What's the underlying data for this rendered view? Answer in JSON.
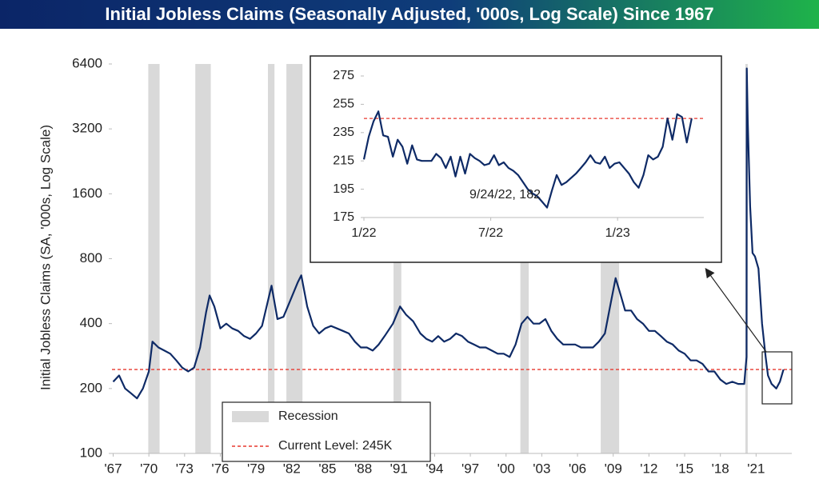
{
  "chart_data": [
    {
      "type": "line",
      "title": "Initial Jobless Claims (Seasonally Adjusted, '000s, Log Scale) Since 1967",
      "ylabel": "Initial Jobless Claims (SA, '000s, Log Scale)",
      "log_scale": true,
      "xlim": [
        1966.9,
        2024.0
      ],
      "ylim": [
        100,
        6400
      ],
      "yticks": [
        100,
        200,
        400,
        800,
        1600,
        3200,
        6400
      ],
      "xticks": [
        {
          "value": 1967,
          "label": "'67"
        },
        {
          "value": 1970,
          "label": "'70"
        },
        {
          "value": 1973,
          "label": "'73"
        },
        {
          "value": 1976,
          "label": "'76"
        },
        {
          "value": 1979,
          "label": "'79"
        },
        {
          "value": 1982,
          "label": "'82"
        },
        {
          "value": 1985,
          "label": "'85"
        },
        {
          "value": 1988,
          "label": "'88"
        },
        {
          "value": 1991,
          "label": "'91"
        },
        {
          "value": 1994,
          "label": "'94"
        },
        {
          "value": 1997,
          "label": "'97"
        },
        {
          "value": 2000,
          "label": "'00"
        },
        {
          "value": 2003,
          "label": "'03"
        },
        {
          "value": 2006,
          "label": "'06"
        },
        {
          "value": 2009,
          "label": "'09"
        },
        {
          "value": 2012,
          "label": "'12"
        },
        {
          "value": 2015,
          "label": "'15"
        },
        {
          "value": 2018,
          "label": "'18"
        },
        {
          "value": 2021,
          "label": "'21"
        }
      ],
      "recessions": [
        [
          1969.95,
          1970.9
        ],
        [
          1973.9,
          1975.2
        ],
        [
          1980.0,
          1980.55
        ],
        [
          1981.55,
          1982.9
        ],
        [
          1990.55,
          1991.2
        ],
        [
          2001.2,
          2001.9
        ],
        [
          2007.95,
          2009.5
        ],
        [
          2020.1,
          2020.3
        ]
      ],
      "recession_color": "#d9d9d9",
      "recession_label": "Recession",
      "reference_line": {
        "value": 245,
        "label": "Current Level: 245K",
        "color": "#e8382f"
      },
      "series": [
        {
          "name": "Initial Jobless Claims",
          "color": "#0e2a66",
          "x": [
            1967,
            1967.5,
            1968,
            1968.5,
            1969,
            1969.5,
            1970,
            1970.3,
            1970.8,
            1971.3,
            1971.8,
            1972.3,
            1972.8,
            1973.3,
            1973.8,
            1974.3,
            1974.8,
            1975.1,
            1975.5,
            1976,
            1976.5,
            1977,
            1977.5,
            1978,
            1978.5,
            1979,
            1979.5,
            1980.3,
            1980.8,
            1981.3,
            1981.8,
            1982.5,
            1982.8,
            1983.3,
            1983.8,
            1984.3,
            1984.8,
            1985.3,
            1985.8,
            1986.3,
            1986.8,
            1987.3,
            1987.8,
            1988.3,
            1988.8,
            1989.3,
            1989.8,
            1990.5,
            1991.1,
            1991.6,
            1992.2,
            1992.8,
            1993.3,
            1993.8,
            1994.3,
            1994.8,
            1995.3,
            1995.8,
            1996.3,
            1996.8,
            1997.3,
            1997.8,
            1998.3,
            1998.8,
            1999.3,
            1999.8,
            2000.3,
            2000.8,
            2001.3,
            2001.8,
            2002.3,
            2002.8,
            2003.3,
            2003.8,
            2004.3,
            2004.8,
            2005.3,
            2005.8,
            2006.3,
            2006.8,
            2007.3,
            2007.8,
            2008.3,
            2008.8,
            2009.2,
            2009.6,
            2010,
            2010.5,
            2011,
            2011.5,
            2012,
            2012.5,
            2013,
            2013.5,
            2014,
            2014.5,
            2015,
            2015.5,
            2016,
            2016.5,
            2017,
            2017.5,
            2018,
            2018.5,
            2019,
            2019.5,
            2020,
            2020.2,
            2020.22,
            2020.3,
            2020.5,
            2020.7,
            2020.9,
            2021.2,
            2021.5,
            2021.8,
            2022,
            2022.3,
            2022.7,
            2023,
            2023.3
          ],
          "values": [
            215,
            230,
            200,
            190,
            180,
            200,
            240,
            330,
            310,
            300,
            290,
            270,
            250,
            240,
            250,
            310,
            450,
            540,
            480,
            380,
            400,
            380,
            370,
            350,
            340,
            360,
            390,
            600,
            420,
            430,
            500,
            620,
            670,
            480,
            390,
            360,
            380,
            390,
            380,
            370,
            360,
            330,
            310,
            310,
            300,
            320,
            350,
            400,
            480,
            440,
            410,
            360,
            340,
            330,
            350,
            330,
            340,
            360,
            350,
            330,
            320,
            310,
            310,
            300,
            290,
            290,
            280,
            320,
            400,
            430,
            400,
            400,
            420,
            370,
            340,
            320,
            320,
            320,
            310,
            310,
            310,
            330,
            360,
            500,
            650,
            550,
            460,
            460,
            420,
            400,
            370,
            370,
            350,
            330,
            320,
            300,
            290,
            270,
            270,
            260,
            240,
            240,
            220,
            210,
            215,
            210,
            210,
            280,
            6100,
            3500,
            1400,
            850,
            820,
            720,
            400,
            280,
            230,
            210,
            200,
            215,
            245
          ]
        }
      ]
    },
    {
      "type": "line",
      "log_scale": false,
      "xlim": [
        2022.0,
        2023.34
      ],
      "ylim": [
        175,
        288
      ],
      "yticks": [
        175,
        195,
        215,
        235,
        255,
        275
      ],
      "xticks": [
        {
          "value": 2022,
          "label": "1/22"
        },
        {
          "value": 2022.5,
          "label": "7/22"
        },
        {
          "value": 2023,
          "label": "1/23"
        }
      ],
      "reference_line": {
        "value": 245,
        "color": "#e8382f"
      },
      "annotation": {
        "text": "9/24/22, 182",
        "x": 2022.722,
        "y": 182
      },
      "series": [
        {
          "name": "Initial Jobless Claims",
          "color": "#0e2a66",
          "x": [
            2022.0,
            2022.019,
            2022.038,
            2022.057,
            2022.076,
            2022.095,
            2022.114,
            2022.133,
            2022.152,
            2022.171,
            2022.19,
            2022.209,
            2022.228,
            2022.247,
            2022.266,
            2022.285,
            2022.304,
            2022.323,
            2022.342,
            2022.361,
            2022.38,
            2022.399,
            2022.418,
            2022.437,
            2022.456,
            2022.475,
            2022.494,
            2022.513,
            2022.532,
            2022.551,
            2022.57,
            2022.589,
            2022.608,
            2022.627,
            2022.646,
            2022.665,
            2022.684,
            2022.703,
            2022.722,
            2022.741,
            2022.76,
            2022.779,
            2022.798,
            2022.817,
            2022.836,
            2022.855,
            2022.874,
            2022.893,
            2022.912,
            2022.931,
            2022.95,
            2022.969,
            2022.988,
            2023.007,
            2023.026,
            2023.045,
            2023.064,
            2023.083,
            2023.102,
            2023.121,
            2023.14,
            2023.159,
            2023.178,
            2023.197,
            2023.216,
            2023.235,
            2023.254,
            2023.273,
            2023.292
          ],
          "values": [
            216,
            232,
            243,
            250,
            233,
            232,
            218,
            230,
            225,
            213,
            226,
            216,
            215,
            215,
            215,
            220,
            217,
            210,
            218,
            204,
            218,
            206,
            220,
            217,
            215,
            212,
            213,
            219,
            212,
            214,
            210,
            208,
            205,
            200,
            195,
            192,
            190,
            186,
            182,
            194,
            205,
            198,
            200,
            203,
            206,
            210,
            214,
            219,
            214,
            213,
            218,
            210,
            213,
            214,
            210,
            206,
            200,
            196,
            205,
            219,
            216,
            218,
            225,
            245,
            230,
            248,
            246,
            228,
            245
          ]
        }
      ]
    }
  ]
}
